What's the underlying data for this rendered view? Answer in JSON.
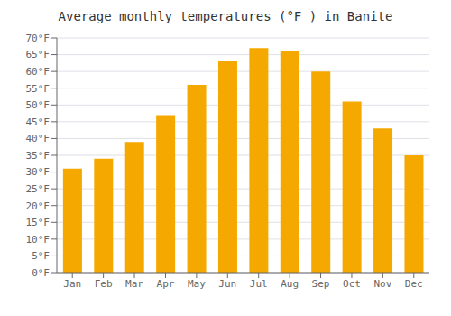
{
  "chart_data": {
    "type": "bar",
    "title": "Average monthly temperatures (°F ) in Banite",
    "categories": [
      "Jan",
      "Feb",
      "Mar",
      "Apr",
      "May",
      "Jun",
      "Jul",
      "Aug",
      "Sep",
      "Oct",
      "Nov",
      "Dec"
    ],
    "values": [
      31,
      34,
      39,
      47,
      56,
      63,
      67,
      66,
      60,
      51,
      43,
      35
    ],
    "color": "#F5A800",
    "ylim": [
      0,
      70
    ],
    "yticks": [
      {
        "value": 0,
        "label": "0°F"
      },
      {
        "value": 5,
        "label": "5°F"
      },
      {
        "value": 10,
        "label": "10°F"
      },
      {
        "value": 15,
        "label": "15°F"
      },
      {
        "value": 20,
        "label": "20°F"
      },
      {
        "value": 25,
        "label": "25°F"
      },
      {
        "value": 30,
        "label": "30°F"
      },
      {
        "value": 35,
        "label": "35°F"
      },
      {
        "value": 40,
        "label": "40°F"
      },
      {
        "value": 45,
        "label": "45°F"
      },
      {
        "value": 50,
        "label": "50°F"
      },
      {
        "value": 55,
        "label": "55°F"
      },
      {
        "value": 60,
        "label": "60°F"
      },
      {
        "value": 65,
        "label": "65°F"
      },
      {
        "value": 70,
        "label": "70°F"
      }
    ],
    "grid": true
  }
}
